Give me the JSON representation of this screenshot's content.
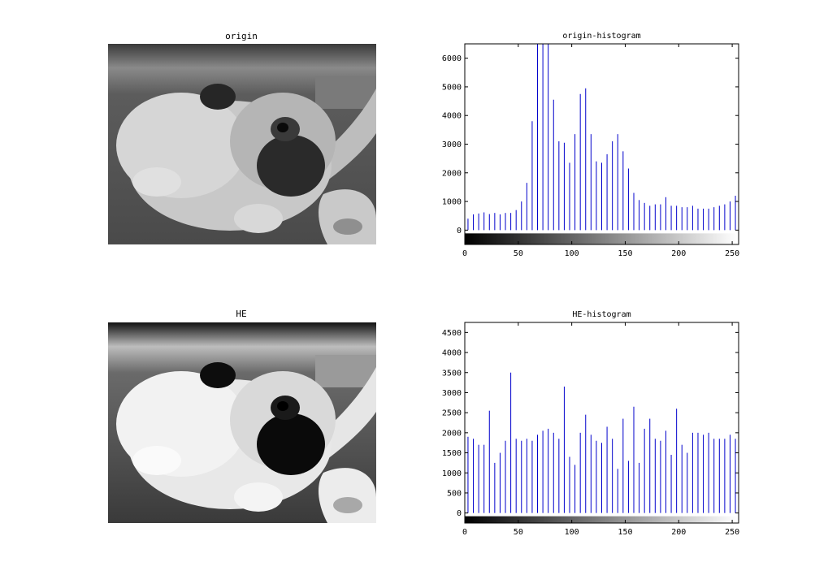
{
  "figure": {
    "panels": {
      "origin_title": "origin",
      "he_title": "HE"
    }
  },
  "chart_data": [
    {
      "type": "bar",
      "title": "origin-histogram",
      "xlim": [
        0,
        256
      ],
      "ylim": [
        -500,
        6500
      ],
      "x_ticks": [
        0,
        50,
        100,
        150,
        200,
        250
      ],
      "y_ticks": [
        0,
        1000,
        2000,
        3000,
        4000,
        5000,
        6000
      ],
      "bar_color": "#0000cc",
      "colorbar": "grayscale 0-255",
      "x": [
        3,
        8,
        13,
        18,
        23,
        28,
        33,
        38,
        43,
        48,
        53,
        58,
        63,
        68,
        73,
        78,
        83,
        88,
        93,
        98,
        103,
        108,
        113,
        118,
        123,
        128,
        133,
        138,
        143,
        148,
        153,
        158,
        163,
        168,
        173,
        178,
        183,
        188,
        193,
        198,
        203,
        208,
        213,
        218,
        223,
        228,
        233,
        238,
        243,
        248,
        253
      ],
      "values": [
        400,
        550,
        580,
        620,
        560,
        600,
        550,
        600,
        600,
        700,
        1000,
        1650,
        3800,
        6500,
        6500,
        6500,
        4550,
        3100,
        3050,
        2350,
        3350,
        4750,
        4950,
        3350,
        2400,
        2350,
        2650,
        3100,
        3350,
        2750,
        2150,
        1300,
        1050,
        950,
        850,
        900,
        900,
        1150,
        850,
        850,
        800,
        800,
        850,
        750,
        750,
        750,
        800,
        850,
        900,
        1000,
        1200
      ]
    },
    {
      "type": "bar",
      "title": "HE-histogram",
      "xlim": [
        0,
        256
      ],
      "ylim": [
        -250,
        4750
      ],
      "x_ticks": [
        0,
        50,
        100,
        150,
        200,
        250
      ],
      "y_ticks": [
        0,
        500,
        1000,
        1500,
        2000,
        2500,
        3000,
        3500,
        4000,
        4500
      ],
      "bar_color": "#0000cc",
      "colorbar": "grayscale 0-255",
      "x": [
        3,
        8,
        13,
        18,
        23,
        28,
        33,
        38,
        43,
        48,
        53,
        58,
        63,
        68,
        73,
        78,
        83,
        88,
        93,
        98,
        103,
        108,
        113,
        118,
        123,
        128,
        133,
        138,
        143,
        148,
        153,
        158,
        163,
        168,
        173,
        178,
        183,
        188,
        193,
        198,
        203,
        208,
        213,
        218,
        223,
        228,
        233,
        238,
        243,
        248,
        253
      ],
      "values": [
        1900,
        1850,
        1700,
        1700,
        2550,
        1250,
        1500,
        1800,
        3500,
        1850,
        1800,
        1850,
        1800,
        1950,
        2050,
        2100,
        2000,
        1850,
        3150,
        1400,
        1200,
        2000,
        2450,
        1950,
        1800,
        1750,
        2150,
        1850,
        1100,
        2350,
        1300,
        2650,
        1250,
        2100,
        2350,
        1850,
        1800,
        2050,
        1450,
        2600,
        1700,
        1500,
        2000,
        2000,
        1950,
        2000,
        1850,
        1850,
        1850,
        1950,
        1850
      ]
    }
  ]
}
